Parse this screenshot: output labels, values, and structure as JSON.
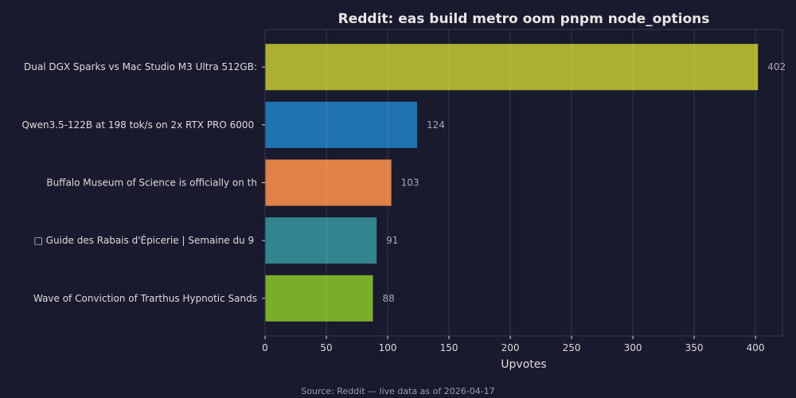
{
  "chart_data": {
    "type": "bar",
    "orientation": "horizontal",
    "title": "Reddit: eas build metro oom pnpm node_options",
    "xlabel": "Upvotes",
    "ylabel": "",
    "xlim": [
      0,
      422
    ],
    "xticks": [
      0,
      50,
      100,
      150,
      200,
      250,
      300,
      350,
      400
    ],
    "grid": true,
    "categories": [
      "Dual DGX Sparks vs Mac Studio M3 Ultra 512GB:",
      "Qwen3.5-122B at 198 tok/s on 2x RTX PRO 6000 ",
      "Buffalo Museum of Science is officially on th",
      "□ Guide des Rabais d'Épicerie | Semaine du 9 ",
      "Wave of Conviction of Trarthus Hypnotic Sands"
    ],
    "values": [
      402,
      124,
      103,
      91,
      88
    ],
    "colors": [
      "#abb030",
      "#1f73b0",
      "#e08246",
      "#32858e",
      "#78ae28"
    ],
    "source": "Source: Reddit — live data as of 2026-04-17"
  }
}
